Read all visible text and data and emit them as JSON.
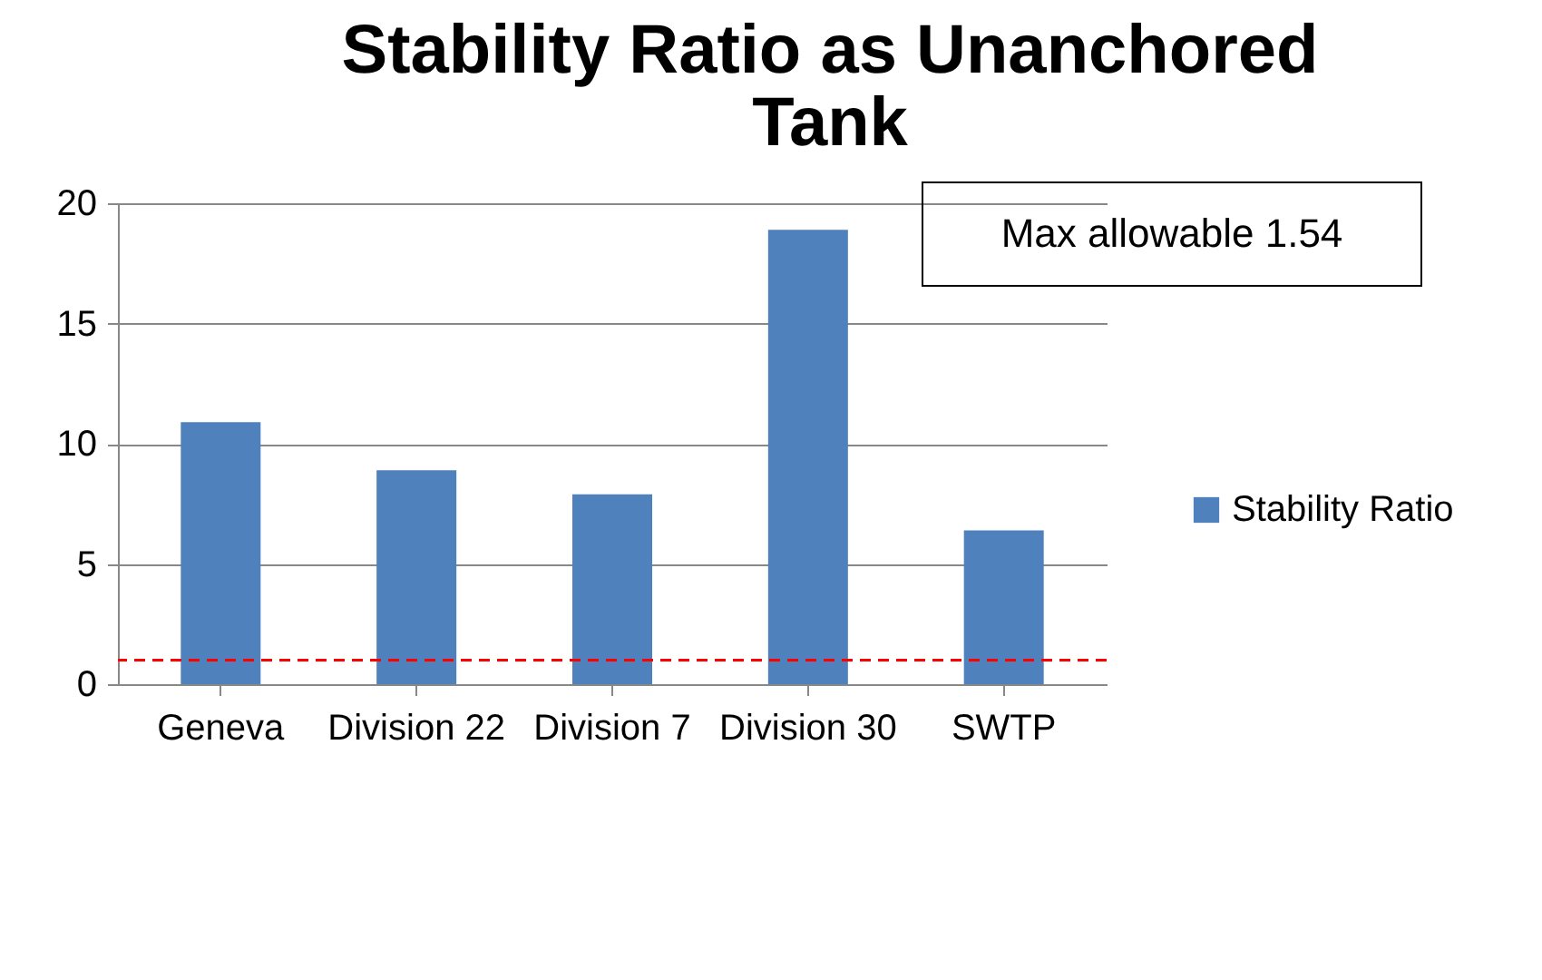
{
  "chart_data": {
    "type": "bar",
    "title": [
      "Stability Ratio as Unanchored",
      "Tank"
    ],
    "categories": [
      "Geneva",
      "Division 22",
      "Division 7",
      "Division 30",
      "SWTP"
    ],
    "series": [
      {
        "name": "Stability Ratio",
        "color": "#4f81bd",
        "values": [
          10.9,
          8.9,
          7.9,
          18.9,
          6.4
        ]
      }
    ],
    "ylim": [
      0,
      20
    ],
    "yticks": [
      0,
      5,
      10,
      15,
      20
    ],
    "grid": "y",
    "legend": "right",
    "ref_lines": [
      {
        "axis": "y",
        "value": 1,
        "label": null,
        "color": "#ff0000",
        "line_style": "dashed"
      }
    ],
    "annotations": [
      "Max allowable 1.54"
    ]
  }
}
